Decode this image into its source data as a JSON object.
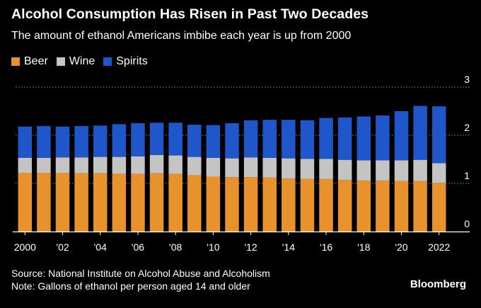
{
  "colors": {
    "background": "#000000",
    "beer": "#E8922E",
    "wine": "#C4C4C4",
    "spirits": "#1F56C9",
    "text": "#FFFFFF",
    "gridline": "#8C8C8C"
  },
  "header": {
    "title": "Alcohol Consumption Has Risen in Past Two Decades",
    "subtitle": "The amount of ethanol Americans imbibe each year is up from 2000"
  },
  "footer": {
    "source": "Source: National Institute on Alcohol Abuse and Alcoholism",
    "note": "Note: Gallons of ethanol per person aged 14 and older",
    "brand": "Bloomberg"
  },
  "chart_data": {
    "type": "bar",
    "stacked": true,
    "title": "Alcohol Consumption Has Risen in Past Two Decades",
    "subtitle": "The amount of ethanol Americans imbibe each year is up from 2000",
    "xlabel": "",
    "ylabel": "",
    "ylim": [
      0,
      3
    ],
    "yticks": [
      0,
      1,
      2,
      3
    ],
    "ytick_labels": [
      "0",
      "1",
      "2",
      "3"
    ],
    "y_axis_position": "right",
    "grid": "horizontal dotted",
    "legend_placement": "top-left",
    "categories": [
      "2000",
      "2001",
      "2002",
      "2003",
      "2004",
      "2005",
      "2006",
      "2007",
      "2008",
      "2009",
      "2010",
      "2011",
      "2012",
      "2013",
      "2014",
      "2015",
      "2016",
      "2017",
      "2018",
      "2019",
      "2020",
      "2021",
      "2022"
    ],
    "x_tick_labels": [
      {
        "category": "2000",
        "label": "2000"
      },
      {
        "category": "2002",
        "label": "'02"
      },
      {
        "category": "2004",
        "label": "'04"
      },
      {
        "category": "2006",
        "label": "'06"
      },
      {
        "category": "2008",
        "label": "'08"
      },
      {
        "category": "2010",
        "label": "'10"
      },
      {
        "category": "2012",
        "label": "'12"
      },
      {
        "category": "2014",
        "label": "'14"
      },
      {
        "category": "2016",
        "label": "'16"
      },
      {
        "category": "2018",
        "label": "'18"
      },
      {
        "category": "2020",
        "label": "'20"
      },
      {
        "category": "2022",
        "label": "2022"
      }
    ],
    "series": [
      {
        "name": "Beer",
        "color": "#E8922E",
        "values": [
          1.22,
          1.22,
          1.22,
          1.21,
          1.21,
          1.2,
          1.2,
          1.21,
          1.2,
          1.17,
          1.14,
          1.13,
          1.13,
          1.12,
          1.1,
          1.09,
          1.09,
          1.07,
          1.06,
          1.06,
          1.05,
          1.05,
          1.01
        ]
      },
      {
        "name": "Wine",
        "color": "#C4C4C4",
        "values": [
          0.31,
          0.31,
          0.32,
          0.33,
          0.34,
          0.35,
          0.36,
          0.38,
          0.38,
          0.38,
          0.39,
          0.39,
          0.41,
          0.41,
          0.42,
          0.42,
          0.42,
          0.42,
          0.42,
          0.42,
          0.43,
          0.44,
          0.41
        ]
      },
      {
        "name": "Spirits",
        "color": "#1F56C9",
        "values": [
          0.65,
          0.66,
          0.64,
          0.65,
          0.65,
          0.68,
          0.69,
          0.67,
          0.68,
          0.67,
          0.68,
          0.73,
          0.77,
          0.79,
          0.8,
          0.8,
          0.85,
          0.88,
          0.91,
          0.93,
          1.02,
          1.12,
          1.18
        ]
      }
    ]
  }
}
